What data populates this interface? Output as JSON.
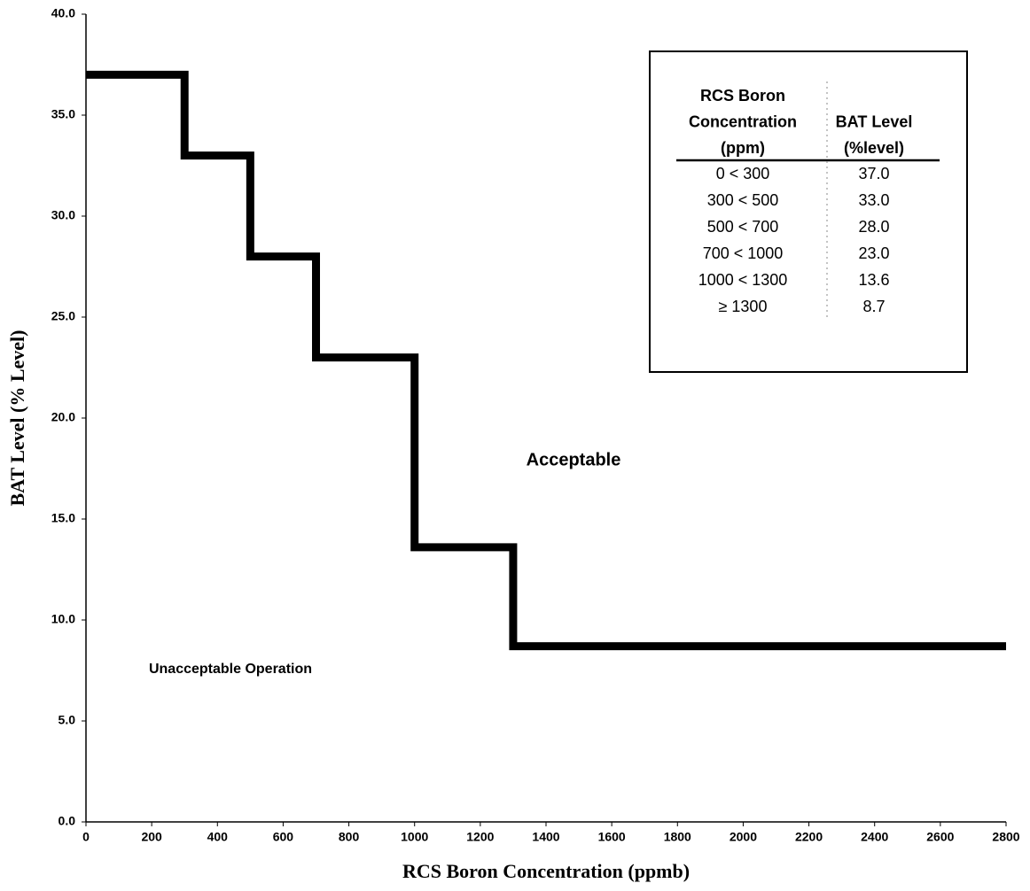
{
  "chart_data": {
    "type": "line",
    "xlabel": "RCS Boron Concentration (ppmb)",
    "ylabel": "BAT Level (% Level)",
    "x": [
      0,
      300,
      300,
      500,
      500,
      700,
      700,
      1000,
      1000,
      1300,
      1300,
      2800
    ],
    "series": [
      {
        "color": "#000000",
        "values": [
          37,
          37,
          33,
          33,
          28,
          28,
          23,
          23,
          13.6,
          13.6,
          8.7,
          8.7
        ]
      }
    ],
    "xlim": [
      0,
      2800
    ],
    "xticks": [
      0,
      200,
      400,
      600,
      800,
      1000,
      1200,
      1400,
      1600,
      1800,
      2000,
      2200,
      2400,
      2600,
      2800
    ],
    "ylim": [
      0,
      40
    ],
    "yticks": [
      {
        "value": 0,
        "label": "0.0"
      },
      {
        "value": 5,
        "label": "5.0"
      },
      {
        "value": 10,
        "label": "10.0"
      },
      {
        "value": 15,
        "label": "15.0"
      },
      {
        "value": 20,
        "label": "20.0"
      },
      {
        "value": 25,
        "label": "25.0"
      },
      {
        "value": 30,
        "label": "30.0"
      },
      {
        "value": 35,
        "label": "35.0"
      },
      {
        "value": 40,
        "label": "40.0"
      }
    ],
    "grid": false,
    "annotations": [
      "Acceptable",
      "Unacceptable Operation"
    ],
    "table": {
      "header": [
        [
          "RCS Boron",
          "Concentration",
          "(ppm)"
        ],
        [
          "BAT Level",
          "(%level)"
        ]
      ],
      "rows": [
        [
          "0 < 300",
          "37.0"
        ],
        [
          "300 < 500",
          "33.0"
        ],
        [
          "500 < 700",
          "28.0"
        ],
        [
          "700 < 1000",
          "23.0"
        ],
        [
          "1000 < 1300",
          "13.6"
        ],
        [
          "≥ 1300",
          "8.7"
        ]
      ]
    }
  }
}
